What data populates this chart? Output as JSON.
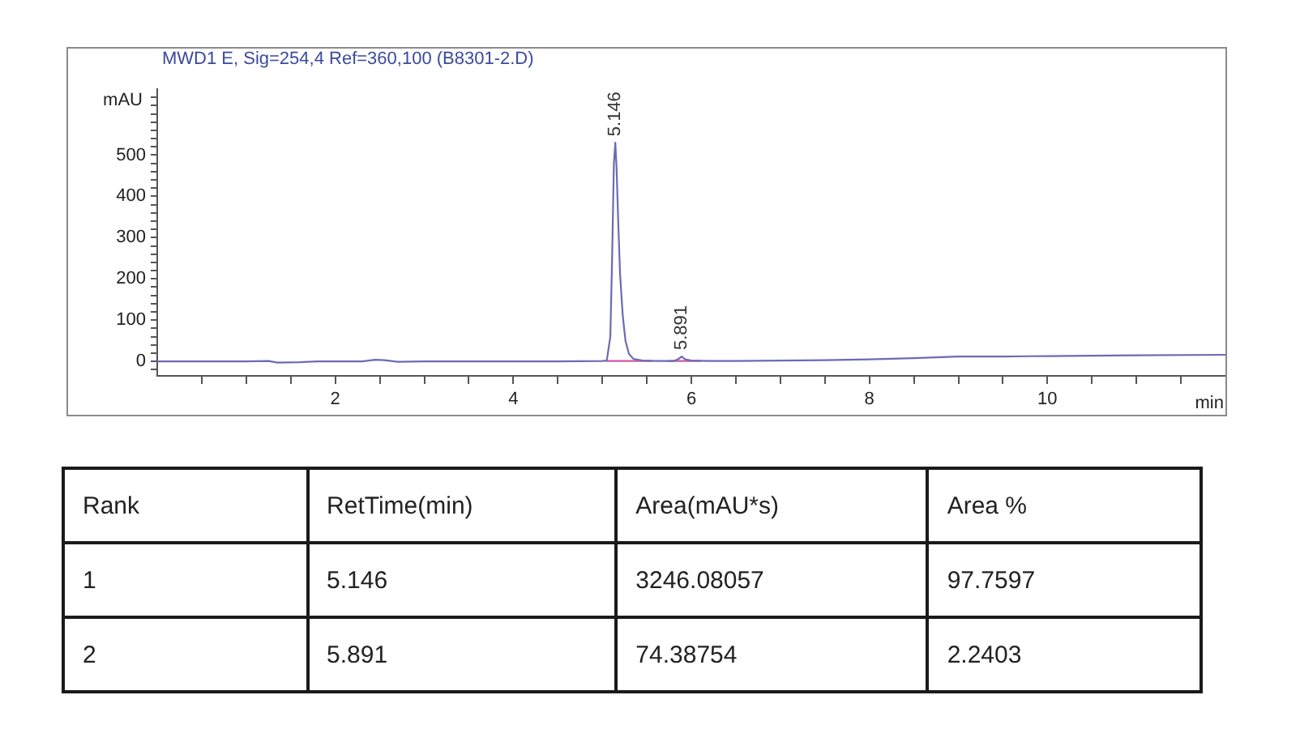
{
  "chart_data": [
    {
      "type": "line",
      "title": "MWD1 E, Sig=254,4 Ref=360,100 (B8301-2.D)",
      "xlabel": "min",
      "ylabel": "mAU",
      "xlim": [
        0,
        12
      ],
      "ylim": [
        -35,
        660
      ],
      "xticks": [
        {
          "value": 0.5,
          "label": null
        },
        {
          "value": 1,
          "label": null
        },
        {
          "value": 1.5,
          "label": null
        },
        2,
        {
          "value": 2.5,
          "label": null
        },
        {
          "value": 3,
          "label": null
        },
        {
          "value": 3.5,
          "label": null
        },
        4,
        {
          "value": 4.5,
          "label": null
        },
        {
          "value": 5,
          "label": null
        },
        {
          "value": 5.5,
          "label": null
        },
        6,
        {
          "value": 6.5,
          "label": null
        },
        {
          "value": 7,
          "label": null
        },
        {
          "value": 7.5,
          "label": null
        },
        8,
        {
          "value": 8.5,
          "label": null
        },
        {
          "value": 9,
          "label": null
        },
        {
          "value": 9.5,
          "label": null
        },
        10,
        {
          "value": 10.5,
          "label": null
        },
        {
          "value": 11,
          "label": null
        },
        {
          "value": 11.5,
          "label": null
        }
      ],
      "yticks": [
        {
          "value": -20,
          "label": null
        },
        0,
        {
          "value": 20,
          "label": null
        },
        {
          "value": 40,
          "label": null
        },
        {
          "value": 60,
          "label": null
        },
        {
          "value": 80,
          "label": null
        },
        100,
        {
          "value": 120,
          "label": null
        },
        {
          "value": 140,
          "label": null
        },
        {
          "value": 160,
          "label": null
        },
        {
          "value": 180,
          "label": null
        },
        200,
        {
          "value": 220,
          "label": null
        },
        {
          "value": 240,
          "label": null
        },
        {
          "value": 260,
          "label": null
        },
        {
          "value": 280,
          "label": null
        },
        300,
        {
          "value": 320,
          "label": null
        },
        {
          "value": 340,
          "label": null
        },
        {
          "value": 360,
          "label": null
        },
        {
          "value": 380,
          "label": null
        },
        400,
        {
          "value": 420,
          "label": null
        },
        {
          "value": 440,
          "label": null
        },
        {
          "value": 460,
          "label": null
        },
        {
          "value": 480,
          "label": null
        },
        500,
        {
          "value": 520,
          "label": null
        },
        {
          "value": 540,
          "label": null
        },
        {
          "value": 560,
          "label": null
        },
        {
          "value": 580,
          "label": null
        },
        {
          "value": 600,
          "label": null
        },
        {
          "value": 620,
          "label": null
        },
        {
          "value": 640,
          "label": null
        }
      ],
      "grid": false,
      "series": [
        {
          "color": "#6b6bb5",
          "x": [
            0,
            0.5,
            1,
            1.25,
            1.35,
            1.6,
            1.8,
            2.3,
            2.45,
            2.55,
            2.7,
            3,
            4,
            4.5,
            5,
            5.05,
            5.09,
            5.11,
            5.13,
            5.146,
            5.16,
            5.18,
            5.2,
            5.23,
            5.26,
            5.3,
            5.35,
            5.45,
            5.6,
            5.8,
            5.85,
            5.891,
            5.93,
            6,
            6.2,
            6.5,
            7,
            7.5,
            8,
            8.5,
            9,
            9.5,
            10,
            11,
            12
          ],
          "values": [
            0,
            0,
            0,
            1,
            -3,
            -2,
            0,
            0,
            4,
            3,
            -1,
            0,
            0,
            0,
            1,
            2,
            60,
            250,
            480,
            530,
            470,
            330,
            210,
            110,
            50,
            18,
            6,
            2,
            1,
            1,
            5,
            12,
            5,
            2,
            1,
            1,
            2,
            3,
            5,
            8,
            12,
            12,
            13,
            15,
            16
          ]
        },
        {
          "type": "line",
          "color": "#d457a8",
          "x": [
            5.05,
            5.55
          ],
          "values": [
            1,
            1
          ]
        },
        {
          "type": "line",
          "color": "#d457a8",
          "x": [
            5.75,
            6.1
          ],
          "values": [
            1,
            1
          ]
        }
      ],
      "annotations": [
        {
          "text": "5.146",
          "x": 5.146,
          "y": 530
        },
        {
          "text": "5.891",
          "x": 5.891,
          "y": 12
        }
      ]
    },
    {
      "type": "other",
      "categories": [
        "Rank",
        "RetTime(min)",
        "Area(mAU*s)",
        "Area %"
      ],
      "annotations": [
        "1",
        "5.146",
        "3246.08057",
        "97.7597",
        "2",
        "5.891",
        "74.38754",
        "2.2403"
      ]
    }
  ]
}
